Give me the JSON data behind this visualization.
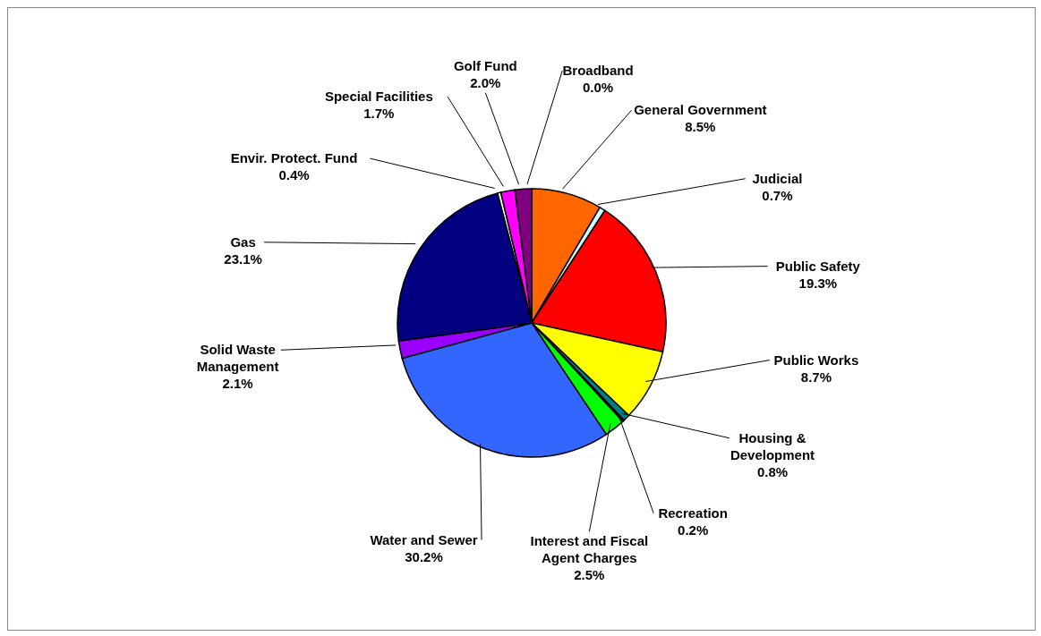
{
  "chart_data": {
    "type": "pie",
    "categories": [
      "General Government",
      "Judicial",
      "Public Safety",
      "Public Works",
      "Housing & Development",
      "Recreation",
      "Interest and Fiscal Agent Charges",
      "Water and Sewer",
      "Solid Waste Management",
      "Gas",
      "Envir. Protect. Fund",
      "Special Facilities",
      "Golf Fund",
      "Broadband"
    ],
    "values": [
      8.5,
      0.7,
      19.3,
      8.7,
      0.8,
      0.2,
      2.5,
      30.2,
      2.1,
      23.1,
      0.4,
      1.7,
      2.0,
      0.0
    ],
    "value_labels": [
      "8.5%",
      "0.7%",
      "19.3%",
      "8.7%",
      "0.8%",
      "0.2%",
      "2.5%",
      "30.2%",
      "2.1%",
      "23.1%",
      "0.4%",
      "1.7%",
      "2.0%",
      "0.0%"
    ],
    "colors": [
      "#ff6600",
      "#ccffff",
      "#ff0000",
      "#ffff00",
      "#008080",
      "#003366",
      "#00ff00",
      "#3366ff",
      "#9900ff",
      "#000080",
      "#ffffff",
      "#ff00ff",
      "#800080",
      "#99ccff"
    ]
  }
}
